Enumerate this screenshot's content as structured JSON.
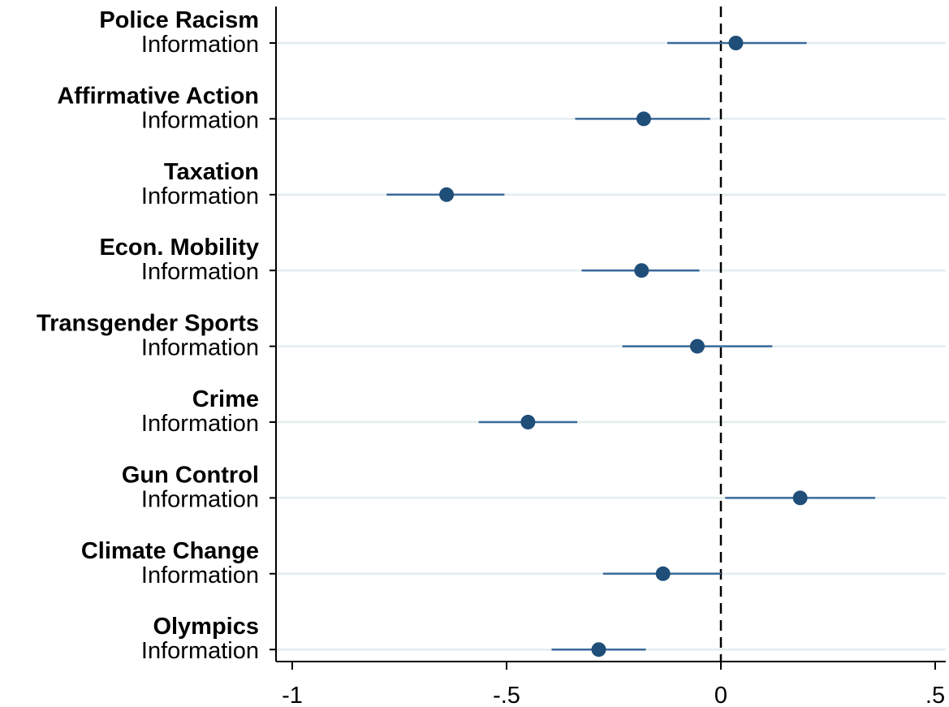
{
  "chart_data": {
    "type": "coefficient-plot",
    "orientation": "horizontal",
    "x_ticks": [
      {
        "value": -1,
        "label": "-1"
      },
      {
        "value": -0.5,
        "label": "-.5"
      },
      {
        "value": 0,
        "label": "0"
      },
      {
        "value": 0.5,
        "label": ".5"
      }
    ],
    "xlim": [
      -1.04,
      0.53
    ],
    "reference_line": {
      "x": 0,
      "style": "dashed"
    },
    "grid": "horizontal",
    "marker_color": "#1f4e79",
    "ci_color": "#3a6a9a",
    "groups": [
      {
        "title": "Police Racism",
        "row_label": "Information",
        "estimate": 0.035,
        "ci_low": -0.125,
        "ci_high": 0.2
      },
      {
        "title": "Affirmative Action",
        "row_label": "Information",
        "estimate": -0.18,
        "ci_low": -0.34,
        "ci_high": -0.025
      },
      {
        "title": "Taxation",
        "row_label": "Information",
        "estimate": -0.64,
        "ci_low": -0.78,
        "ci_high": -0.505
      },
      {
        "title": "Econ. Mobility",
        "row_label": "Information",
        "estimate": -0.185,
        "ci_low": -0.325,
        "ci_high": -0.05
      },
      {
        "title": "Transgender Sports",
        "row_label": "Information",
        "estimate": -0.055,
        "ci_low": -0.23,
        "ci_high": 0.12
      },
      {
        "title": "Crime",
        "row_label": "Information",
        "estimate": -0.45,
        "ci_low": -0.565,
        "ci_high": -0.335
      },
      {
        "title": "Gun Control",
        "row_label": "Information",
        "estimate": 0.185,
        "ci_low": 0.01,
        "ci_high": 0.36
      },
      {
        "title": "Climate Change",
        "row_label": "Information",
        "estimate": -0.135,
        "ci_low": -0.275,
        "ci_high": 0.0
      },
      {
        "title": "Olympics",
        "row_label": "Information",
        "estimate": -0.285,
        "ci_low": -0.395,
        "ci_high": -0.175
      }
    ]
  }
}
